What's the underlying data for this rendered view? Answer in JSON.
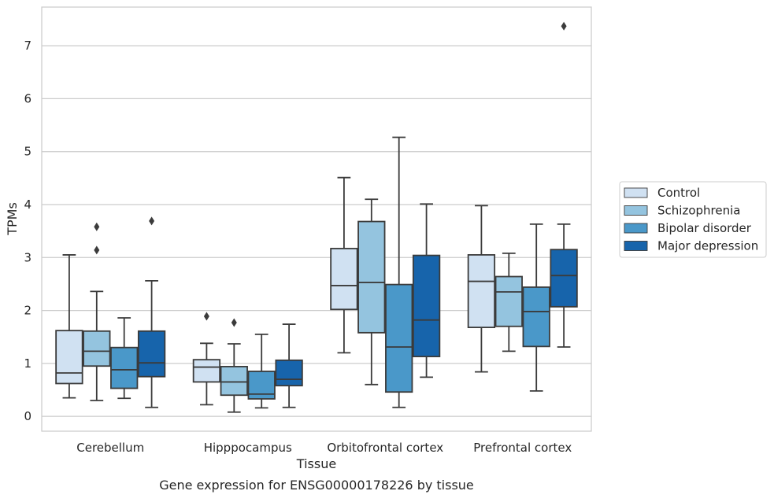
{
  "chart_data": {
    "type": "boxplot",
    "title": "",
    "caption": "Gene expression for ENSG00000178226 by tissue",
    "xlabel": "Tissue",
    "ylabel": "TPMs",
    "ylim": [
      -0.28,
      7.73
    ],
    "yticks": [
      0,
      1,
      2,
      3,
      4,
      5,
      6,
      7
    ],
    "grid": "horizontal",
    "legend_position": "right",
    "categories": [
      "Cerebellum",
      "Hipppocampus",
      "Orbitofrontal cortex",
      "Prefrontal cortex"
    ],
    "series": [
      {
        "name": "Control",
        "color": "#d0e1f2",
        "boxes": [
          {
            "whislo": 0.35,
            "q1": 0.62,
            "med": 0.82,
            "q3": 1.62,
            "whishi": 3.05,
            "fliers": []
          },
          {
            "whislo": 0.22,
            "q1": 0.65,
            "med": 0.93,
            "q3": 1.07,
            "whishi": 1.38,
            "fliers": [
              1.89
            ]
          },
          {
            "whislo": 1.2,
            "q1": 2.02,
            "med": 2.47,
            "q3": 3.17,
            "whishi": 4.51,
            "fliers": []
          },
          {
            "whislo": 0.84,
            "q1": 1.68,
            "med": 2.55,
            "q3": 3.05,
            "whishi": 3.98,
            "fliers": []
          }
        ]
      },
      {
        "name": "Schizophrenia",
        "color": "#94c4df",
        "boxes": [
          {
            "whislo": 0.3,
            "q1": 0.95,
            "med": 1.23,
            "q3": 1.61,
            "whishi": 2.36,
            "fliers": [
              3.14,
              3.58
            ]
          },
          {
            "whislo": 0.08,
            "q1": 0.4,
            "med": 0.65,
            "q3": 0.94,
            "whishi": 1.37,
            "fliers": [
              1.77
            ]
          },
          {
            "whislo": 0.6,
            "q1": 1.58,
            "med": 2.53,
            "q3": 3.68,
            "whishi": 4.1,
            "fliers": []
          },
          {
            "whislo": 1.23,
            "q1": 1.7,
            "med": 2.35,
            "q3": 2.64,
            "whishi": 3.08,
            "fliers": []
          }
        ]
      },
      {
        "name": "Bipolar disorder",
        "color": "#4a98c9",
        "boxes": [
          {
            "whislo": 0.34,
            "q1": 0.53,
            "med": 0.88,
            "q3": 1.3,
            "whishi": 1.86,
            "fliers": []
          },
          {
            "whislo": 0.16,
            "q1": 0.33,
            "med": 0.42,
            "q3": 0.85,
            "whishi": 1.55,
            "fliers": []
          },
          {
            "whislo": 0.17,
            "q1": 0.46,
            "med": 1.31,
            "q3": 2.49,
            "whishi": 5.27,
            "fliers": []
          },
          {
            "whislo": 0.48,
            "q1": 1.32,
            "med": 1.98,
            "q3": 2.44,
            "whishi": 3.63,
            "fliers": []
          }
        ]
      },
      {
        "name": "Major depression",
        "color": "#1764ab",
        "boxes": [
          {
            "whislo": 0.17,
            "q1": 0.75,
            "med": 1.01,
            "q3": 1.61,
            "whishi": 2.56,
            "fliers": [
              3.69
            ]
          },
          {
            "whislo": 0.17,
            "q1": 0.58,
            "med": 0.7,
            "q3": 1.06,
            "whishi": 1.74,
            "fliers": []
          },
          {
            "whislo": 0.74,
            "q1": 1.13,
            "med": 1.82,
            "q3": 3.04,
            "whishi": 4.01,
            "fliers": []
          },
          {
            "whislo": 1.31,
            "q1": 2.07,
            "med": 2.66,
            "q3": 3.15,
            "whishi": 3.63,
            "fliers": [
              7.37
            ]
          }
        ]
      }
    ]
  }
}
